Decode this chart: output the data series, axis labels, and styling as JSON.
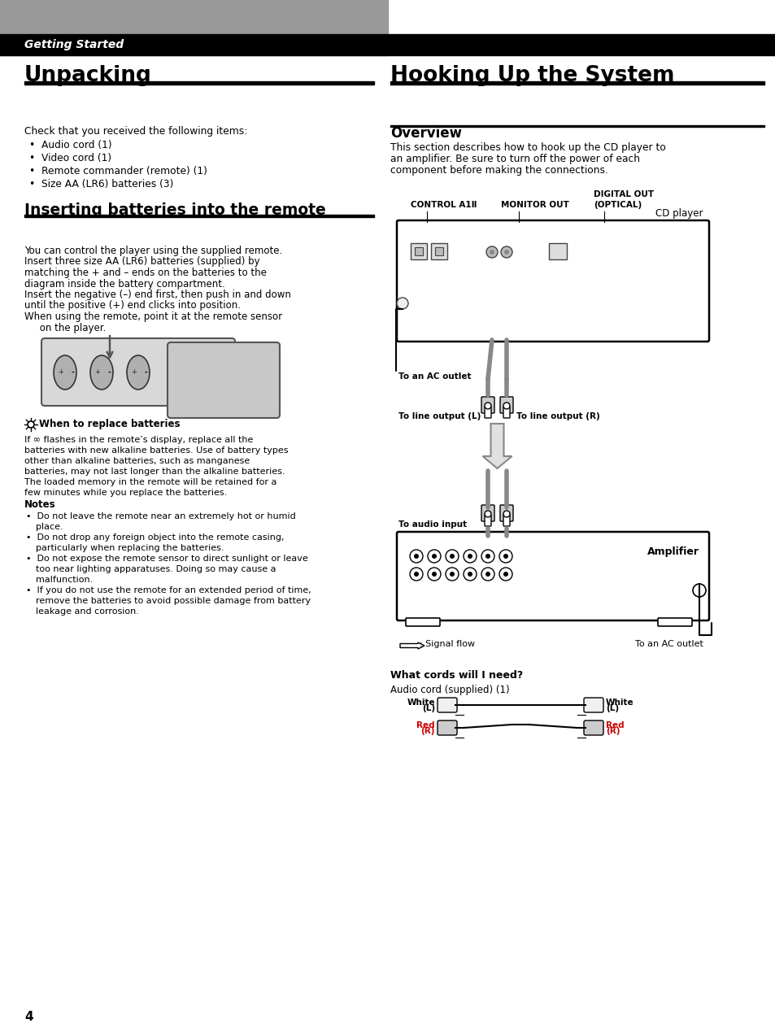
{
  "bg_color": "#ffffff",
  "header_bar_color": "#000000",
  "header_gray_color": "#999999",
  "header_text": "Getting Started",
  "header_text_color": "#ffffff",
  "title_left": "Unpacking",
  "title_right": "Hooking Up the System",
  "unpacking_body": "Check that you received the following items:",
  "unpacking_bullets": [
    "Audio cord (1)",
    "Video cord (1)",
    "Remote commander (remote) (1)",
    "Size AA (LR6) batteries (3)"
  ],
  "inserting_title": "Inserting batteries into the remote",
  "inserting_body_lines": [
    "You can control the player using the supplied remote.",
    "Insert three size AA (LR6) batteries (supplied) by",
    "matching the + and – ends on the batteries to the",
    "diagram inside the battery compartment.",
    "Insert the negative (–) end first, then push in and down",
    "until the positive (+) end clicks into position.",
    "When using the remote, point it at the remote sensor",
    "     on the player."
  ],
  "tip_title": "When to replace batteries",
  "tip_body_lines": [
    "If ∞ flashes in the remote’s display, replace all the",
    "batteries with new alkaline batteries. Use of battery types",
    "other than alkaline batteries, such as manganese",
    "batteries, may not last longer than the alkaline batteries.",
    "The loaded memory in the remote will be retained for a",
    "few minutes while you replace the batteries."
  ],
  "notes_title": "Notes",
  "notes_items": [
    [
      "Do not leave the remote near an extremely hot or humid",
      "place."
    ],
    [
      "Do not drop any foreign object into the remote casing,",
      "particularly when replacing the batteries."
    ],
    [
      "Do not expose the remote sensor to direct sunlight or leave",
      "too near lighting apparatuses. Doing so may cause a",
      "malfunction."
    ],
    [
      "If you do not use the remote for an extended period of time,",
      "remove the batteries to avoid possible damage from battery",
      "leakage and corrosion."
    ]
  ],
  "overview_title": "Overview",
  "overview_body_lines": [
    "This section describes how to hook up the CD player to",
    "an amplifier. Be sure to turn off the power of each",
    "component before making the connections."
  ],
  "label_control": "CONTROL A1Ⅱ",
  "label_monitor": "MONITOR OUT",
  "label_digital_out1": "DIGITAL OUT",
  "label_digital_out2": "(OPTICAL)",
  "label_cd_player": "CD player",
  "label_ac_outlet_top": "To an AC outlet",
  "label_line_L": "To line output (L)",
  "label_line_R": "To line output (R)",
  "label_audio_input": "To audio input",
  "label_amplifier": "Amplifier",
  "label_signal_flow": "       : Signal flow",
  "label_ac_outlet_bot": "To an AC outlet",
  "what_cords_title": "What cords will I need?",
  "what_cords_body": "Audio cord (supplied) (1)",
  "cord_labels_left": [
    "White",
    "(L)",
    "Red",
    "(R)"
  ],
  "cord_labels_right": [
    "White",
    "(L)",
    "Red",
    "(R)"
  ],
  "page_number": "4"
}
